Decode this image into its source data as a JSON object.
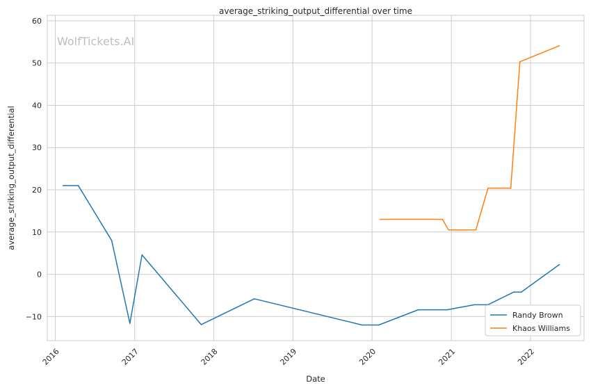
{
  "chart_data": {
    "type": "line",
    "title": "average_striking_output_differential over time",
    "xlabel": "Date",
    "ylabel": "average_striking_output_differential",
    "watermark": "WolfTickets.AI",
    "x_ticks": [
      "2016",
      "2017",
      "2018",
      "2019",
      "2020",
      "2021",
      "2022"
    ],
    "y_ticks": [
      -10,
      0,
      10,
      20,
      30,
      40,
      50,
      60
    ],
    "xlim": [
      "2015-11-25",
      "2022-09-05"
    ],
    "ylim": [
      -15.7,
      61.3
    ],
    "grid": true,
    "legend_position": "bottom-right",
    "series": [
      {
        "name": "Randy Brown",
        "color": "#1f77b4",
        "points": [
          {
            "x": "2016-02-06",
            "y": 21
          },
          {
            "x": "2016-04-16",
            "y": 21
          },
          {
            "x": "2016-09-17",
            "y": 8
          },
          {
            "x": "2016-12-10",
            "y": -11.6
          },
          {
            "x": "2017-02-04",
            "y": 4.6
          },
          {
            "x": "2017-11-04",
            "y": -11.9
          },
          {
            "x": "2018-07-07",
            "y": -5.8
          },
          {
            "x": "2019-11-16",
            "y": -12
          },
          {
            "x": "2020-02-01",
            "y": -12
          },
          {
            "x": "2020-08-01",
            "y": -8.4
          },
          {
            "x": "2020-12-12",
            "y": -8.4
          },
          {
            "x": "2021-04-17",
            "y": -7.2
          },
          {
            "x": "2021-06-19",
            "y": -7.2
          },
          {
            "x": "2021-10-16",
            "y": -4.2
          },
          {
            "x": "2021-11-20",
            "y": -4.2
          },
          {
            "x": "2022-05-14",
            "y": 2.3
          }
        ]
      },
      {
        "name": "Khaos Williams",
        "color": "#ff7f0e",
        "points": [
          {
            "x": "2020-02-08",
            "y": 13
          },
          {
            "x": "2020-11-21",
            "y": 13
          },
          {
            "x": "2020-12-19",
            "y": 10.5
          },
          {
            "x": "2021-04-24",
            "y": 10.5
          },
          {
            "x": "2021-06-19",
            "y": 20.4
          },
          {
            "x": "2021-10-02",
            "y": 20.4
          },
          {
            "x": "2021-11-13",
            "y": 50.3
          },
          {
            "x": "2022-05-14",
            "y": 54.1
          }
        ]
      }
    ]
  }
}
